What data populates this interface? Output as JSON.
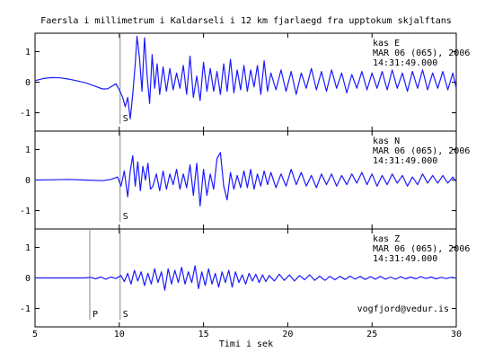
{
  "chart_data": {
    "type": "line",
    "title": "Faersla i millimetrum i Kaldarseli i 12 km fjarlaegd fra upptokum skjalftans",
    "xlabel": "Timi i sek",
    "xlim": [
      5,
      30
    ],
    "x_ticks": [
      "5",
      "10",
      "15",
      "20",
      "25",
      "30"
    ],
    "watermark": "vogfjord@vedur.is",
    "grid": false,
    "legend": "none",
    "line_color": "#1a1aff",
    "panels": [
      {
        "station": "kas",
        "component": "E",
        "date": "MAR 06 (065), 2006",
        "time": "14:31:49.000",
        "ylim": [
          -1.6,
          1.6
        ],
        "y_ticks": [
          "1",
          "0",
          "-1"
        ],
        "markers": [
          {
            "label": "S",
            "x": 10.05
          }
        ],
        "series": [
          {
            "x": [
              5,
              5.5,
              6,
              6.5,
              7,
              7.5,
              8,
              8.5,
              9,
              9.3,
              9.6,
              9.8,
              10,
              10.2,
              10.35,
              10.5,
              10.65,
              10.8,
              10.95,
              11.05,
              11.2,
              11.35,
              11.5,
              11.65,
              11.8,
              11.95,
              12.1,
              12.25,
              12.4,
              12.6,
              12.8,
              13,
              13.2,
              13.4,
              13.6,
              13.8,
              14,
              14.2,
              14.4,
              14.6,
              14.8,
              15,
              15.2,
              15.4,
              15.6,
              15.8,
              16,
              16.2,
              16.4,
              16.6,
              16.8,
              17,
              17.2,
              17.4,
              17.6,
              17.8,
              18,
              18.2,
              18.4,
              18.6,
              18.8,
              19,
              19.3,
              19.6,
              19.9,
              20.2,
              20.5,
              20.8,
              21.1,
              21.4,
              21.7,
              22,
              22.3,
              22.6,
              22.9,
              23.2,
              23.5,
              23.8,
              24.1,
              24.4,
              24.7,
              25,
              25.3,
              25.6,
              25.9,
              26.2,
              26.5,
              26.8,
              27.1,
              27.4,
              27.7,
              28,
              28.3,
              28.6,
              28.9,
              29.2,
              29.5,
              29.8,
              30
            ],
            "y": [
              0.05,
              0.12,
              0.15,
              0.14,
              0.1,
              0.04,
              -0.02,
              -0.12,
              -0.22,
              -0.22,
              -0.12,
              -0.05,
              -0.25,
              -0.5,
              -0.8,
              -0.5,
              -1.2,
              -0.4,
              0.6,
              1.5,
              0.8,
              -0.3,
              1.45,
              0.2,
              -0.7,
              0.9,
              -0.2,
              0.6,
              -0.4,
              0.5,
              -0.3,
              0.45,
              -0.25,
              0.3,
              -0.2,
              0.55,
              -0.4,
              0.85,
              -0.5,
              0.2,
              -0.6,
              0.65,
              -0.3,
              0.45,
              -0.3,
              0.35,
              -0.4,
              0.6,
              -0.3,
              0.75,
              -0.35,
              0.4,
              -0.25,
              0.55,
              -0.3,
              0.4,
              -0.15,
              0.55,
              -0.4,
              0.7,
              -0.3,
              0.3,
              -0.25,
              0.4,
              -0.3,
              0.35,
              -0.4,
              0.3,
              -0.2,
              0.45,
              -0.25,
              0.35,
              -0.3,
              0.4,
              -0.2,
              0.3,
              -0.35,
              0.25,
              -0.2,
              0.35,
              -0.25,
              0.3,
              -0.2,
              0.35,
              -0.25,
              0.4,
              -0.2,
              0.3,
              -0.3,
              0.35,
              -0.2,
              0.4,
              -0.25,
              0.3,
              -0.2,
              0.35,
              -0.25,
              0.3,
              -0.2
            ]
          }
        ]
      },
      {
        "station": "kas",
        "component": "N",
        "date": "MAR 06 (065), 2006",
        "time": "14:31:49.000",
        "ylim": [
          -1.6,
          1.6
        ],
        "y_ticks": [
          "1",
          "0",
          "-1"
        ],
        "markers": [
          {
            "label": "S",
            "x": 10.05
          }
        ],
        "series": [
          {
            "x": [
              5,
              6,
              7,
              8,
              9,
              9.5,
              9.9,
              10.1,
              10.3,
              10.5,
              10.65,
              10.8,
              10.95,
              11.1,
              11.25,
              11.4,
              11.55,
              11.7,
              11.85,
              12,
              12.2,
              12.4,
              12.6,
              12.8,
              13,
              13.2,
              13.4,
              13.6,
              13.8,
              14,
              14.2,
              14.4,
              14.6,
              14.8,
              15,
              15.2,
              15.4,
              15.6,
              15.8,
              16,
              16.2,
              16.4,
              16.6,
              16.8,
              17,
              17.2,
              17.4,
              17.6,
              17.8,
              18,
              18.2,
              18.4,
              18.6,
              18.8,
              19,
              19.3,
              19.6,
              19.9,
              20.2,
              20.5,
              20.8,
              21.1,
              21.4,
              21.7,
              22,
              22.3,
              22.6,
              22.9,
              23.2,
              23.5,
              23.8,
              24.1,
              24.4,
              24.7,
              25,
              25.3,
              25.6,
              25.9,
              26.2,
              26.5,
              26.8,
              27.1,
              27.4,
              27.7,
              28,
              28.3,
              28.6,
              28.9,
              29.2,
              29.5,
              29.8,
              30
            ],
            "y": [
              0,
              0.01,
              0.02,
              0.0,
              -0.02,
              0.02,
              0.1,
              -0.2,
              0.3,
              -0.55,
              0.3,
              0.8,
              -0.2,
              0.6,
              -0.35,
              0.45,
              0.0,
              0.55,
              -0.3,
              -0.2,
              0.2,
              -0.35,
              0.3,
              -0.3,
              0.2,
              -0.15,
              0.35,
              -0.3,
              0.2,
              -0.25,
              0.5,
              -0.5,
              0.55,
              -0.85,
              0.35,
              -0.5,
              0.2,
              -0.3,
              0.7,
              0.9,
              -0.2,
              -0.65,
              0.25,
              -0.3,
              0.15,
              -0.25,
              0.3,
              -0.25,
              0.35,
              -0.3,
              0.2,
              -0.2,
              0.3,
              -0.15,
              0.25,
              -0.25,
              0.2,
              -0.2,
              0.35,
              -0.15,
              0.25,
              -0.2,
              0.15,
              -0.25,
              0.2,
              -0.15,
              0.2,
              -0.2,
              0.15,
              -0.15,
              0.2,
              -0.1,
              0.25,
              -0.15,
              0.2,
              -0.2,
              0.15,
              -0.15,
              0.2,
              -0.1,
              0.15,
              -0.2,
              0.1,
              -0.15,
              0.2,
              -0.1,
              0.15,
              -0.1,
              0.15,
              -0.1,
              0.1,
              -0.05
            ]
          }
        ]
      },
      {
        "station": "kas",
        "component": "Z",
        "date": "MAR 06 (065), 2006",
        "time": "14:31:49.000",
        "ylim": [
          -1.6,
          1.6
        ],
        "y_ticks": [
          "1",
          "0",
          "-1"
        ],
        "markers": [
          {
            "label": "P",
            "x": 8.25
          },
          {
            "label": "S",
            "x": 10.05
          }
        ],
        "series": [
          {
            "x": [
              5,
              6,
              7,
              8,
              8.3,
              8.6,
              8.9,
              9.2,
              9.5,
              9.8,
              10.1,
              10.3,
              10.5,
              10.7,
              10.9,
              11.1,
              11.3,
              11.5,
              11.7,
              11.9,
              12.1,
              12.3,
              12.5,
              12.7,
              12.9,
              13.1,
              13.3,
              13.5,
              13.7,
              13.9,
              14.1,
              14.3,
              14.5,
              14.7,
              14.9,
              15.1,
              15.3,
              15.5,
              15.7,
              15.9,
              16.1,
              16.3,
              16.5,
              16.7,
              16.9,
              17.1,
              17.3,
              17.5,
              17.7,
              17.9,
              18.1,
              18.3,
              18.5,
              18.7,
              18.9,
              19.2,
              19.5,
              19.8,
              20.1,
              20.4,
              20.7,
              21,
              21.3,
              21.6,
              21.9,
              22.2,
              22.5,
              22.8,
              23.1,
              23.4,
              23.7,
              24,
              24.3,
              24.6,
              24.9,
              25.2,
              25.5,
              25.8,
              26.1,
              26.4,
              26.7,
              27,
              27.3,
              27.6,
              27.9,
              28.2,
              28.5,
              28.8,
              29.1,
              29.4,
              29.7,
              30
            ],
            "y": [
              0,
              0,
              0,
              0,
              0.02,
              -0.03,
              0.03,
              -0.04,
              0.03,
              -0.02,
              0.08,
              -0.12,
              0.15,
              -0.2,
              0.25,
              -0.1,
              0.2,
              -0.25,
              0.15,
              -0.2,
              0.3,
              -0.15,
              0.2,
              -0.4,
              0.3,
              -0.2,
              0.25,
              -0.15,
              0.35,
              -0.2,
              0.2,
              -0.15,
              0.4,
              -0.35,
              0.2,
              -0.25,
              0.3,
              -0.2,
              0.15,
              -0.3,
              0.2,
              -0.15,
              0.25,
              -0.3,
              0.2,
              -0.15,
              0.1,
              -0.2,
              0.15,
              -0.1,
              0.12,
              -0.15,
              0.1,
              -0.12,
              0.08,
              -0.1,
              0.12,
              -0.08,
              0.1,
              -0.1,
              0.08,
              -0.06,
              0.1,
              -0.08,
              0.06,
              -0.08,
              0.05,
              -0.06,
              0.05,
              -0.05,
              0.06,
              -0.04,
              0.05,
              -0.05,
              0.04,
              -0.04,
              0.05,
              -0.04,
              0.03,
              -0.04,
              0.04,
              -0.03,
              0.03,
              -0.03,
              0.04,
              -0.02,
              0.03,
              -0.03,
              0.02,
              -0.02,
              0.02,
              -0.01
            ]
          }
        ]
      }
    ]
  }
}
